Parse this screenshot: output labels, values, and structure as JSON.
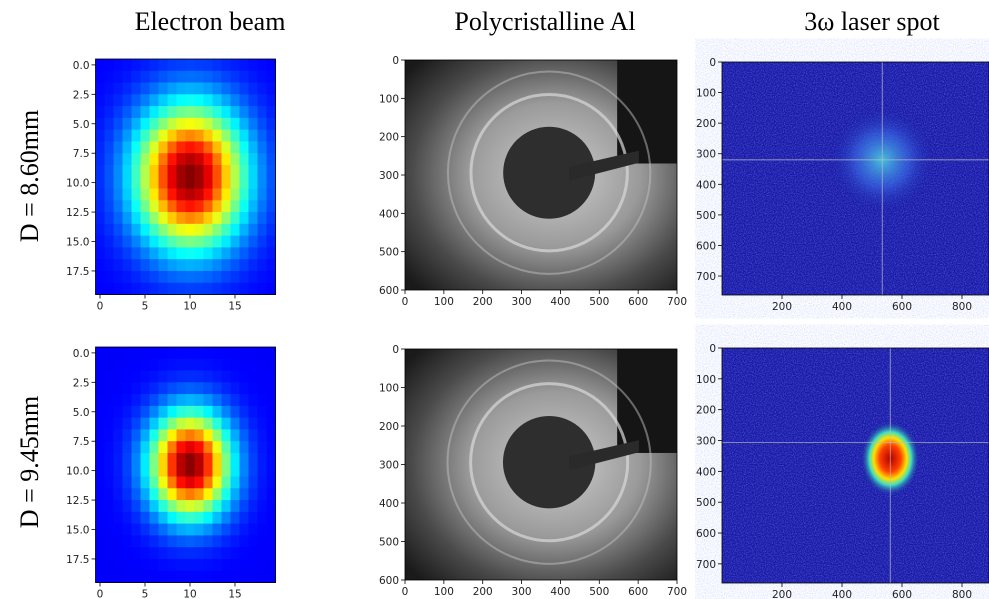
{
  "columns": [
    {
      "title": "Electron beam"
    },
    {
      "title": "Polycristalline Al"
    },
    {
      "title": "3ω laser spot"
    }
  ],
  "rows": [
    {
      "label": "D = 8.60mm",
      "panels": [
        {
          "yticks": [
            "0.0",
            "2.5",
            "5.0",
            "7.5",
            "10.0",
            "12.5",
            "15.0",
            "17.5"
          ],
          "xticks": [
            "0",
            "5",
            "10",
            "15"
          ]
        },
        {
          "yticks": [
            "0",
            "100",
            "200",
            "300",
            "400",
            "500",
            "600"
          ],
          "xticks": [
            "0",
            "100",
            "200",
            "300",
            "400",
            "500",
            "600",
            "700"
          ]
        },
        {
          "yticks": [
            "0",
            "100",
            "200",
            "300",
            "400",
            "500",
            "600",
            "700"
          ],
          "xticks": [
            "200",
            "400",
            "600",
            "800"
          ]
        }
      ]
    },
    {
      "label": "D = 9.45mm",
      "panels": [
        {
          "yticks": [
            "0.0",
            "2.5",
            "5.0",
            "7.5",
            "10.0",
            "12.5",
            "15.0",
            "17.5"
          ],
          "xticks": [
            "0",
            "5",
            "10",
            "15"
          ]
        },
        {
          "yticks": [
            "0",
            "100",
            "200",
            "300",
            "400",
            "500",
            "600"
          ],
          "xticks": [
            "0",
            "100",
            "200",
            "300",
            "400",
            "500",
            "600",
            "700"
          ]
        },
        {
          "yticks": [
            "0",
            "100",
            "200",
            "300",
            "400",
            "500",
            "600",
            "700"
          ],
          "xticks": [
            "200",
            "400",
            "600",
            "800"
          ]
        }
      ]
    }
  ]
}
